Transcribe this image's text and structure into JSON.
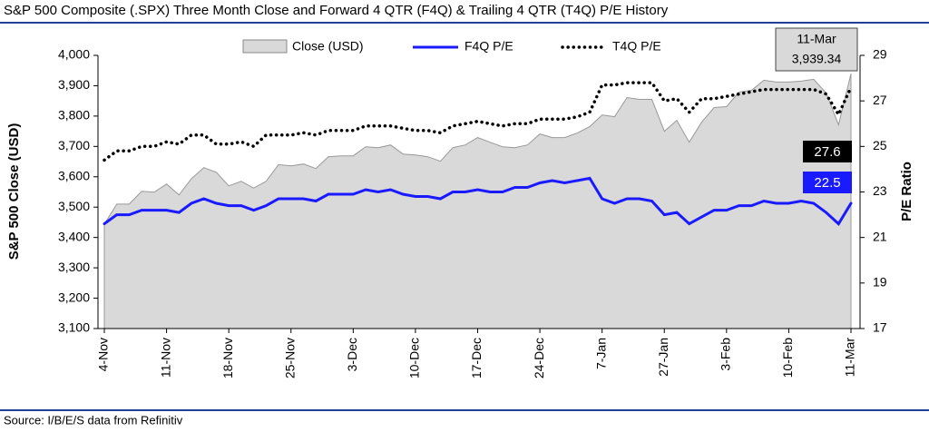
{
  "chart_data": {
    "type": "area_line",
    "title": "S&P 500 Composite (.SPX) Three Month Close and Forward 4 QTR (F4Q) & Trailing 4 QTR (T4Q) P/E History",
    "source": "Source: I/B/E/S data from Refinitiv",
    "y_label": "S&P 500 Close (USD)",
    "y2_label": "P/E Ratio",
    "categories": [
      "4-Nov",
      null,
      null,
      null,
      null,
      "11-Nov",
      null,
      null,
      null,
      null,
      "18-Nov",
      null,
      null,
      null,
      null,
      "25-Nov",
      null,
      null,
      null,
      null,
      "3-Dec",
      null,
      null,
      null,
      null,
      "10-Dec",
      null,
      null,
      null,
      null,
      "17-Dec",
      null,
      null,
      null,
      null,
      "24-Dec",
      null,
      null,
      null,
      null,
      "7-Jan",
      null,
      null,
      null,
      null,
      "27-Jan",
      null,
      null,
      null,
      null,
      "3-Feb",
      null,
      null,
      null,
      null,
      "10-Feb",
      null,
      null,
      null,
      null,
      "11-Mar"
    ],
    "series": [
      {
        "name": "Close (USD)",
        "color": "#d9d9d9",
        "axis": "y",
        "last_label": "3,939.34",
        "values": [
          3444,
          3510,
          3510,
          3552,
          3549,
          3576,
          3540,
          3594,
          3630,
          3615,
          3570,
          3585,
          3563,
          3585,
          3640,
          3636,
          3642,
          3627,
          3666,
          3669,
          3669,
          3699,
          3696,
          3705,
          3675,
          3672,
          3666,
          3651,
          3696,
          3705,
          3729,
          3714,
          3699,
          3696,
          3705,
          3741,
          3729,
          3729,
          3744,
          3765,
          3804,
          3798,
          3861,
          3855,
          3855,
          3750,
          3786,
          3714,
          3780,
          3828,
          3831,
          3879,
          3885,
          3918,
          3912,
          3912,
          3915,
          3921,
          3876,
          3771,
          3939.34
        ]
      },
      {
        "name": "F4Q P/E",
        "color": "#1a1aff",
        "axis": "y2",
        "values": [
          21.6,
          22.0,
          22.0,
          22.2,
          22.2,
          22.2,
          22.1,
          22.5,
          22.7,
          22.5,
          22.4,
          22.4,
          22.2,
          22.4,
          22.7,
          22.7,
          22.7,
          22.6,
          22.9,
          22.9,
          22.9,
          23.1,
          23.0,
          23.1,
          22.9,
          22.8,
          22.8,
          22.7,
          23.0,
          23.0,
          23.1,
          23.0,
          23.0,
          23.2,
          23.2,
          23.4,
          23.5,
          23.4,
          23.5,
          23.6,
          22.7,
          22.5,
          22.7,
          22.7,
          22.6,
          22.0,
          22.1,
          21.6,
          21.9,
          22.2,
          22.2,
          22.4,
          22.4,
          22.6,
          22.5,
          22.5,
          22.6,
          22.5,
          22.1,
          21.6,
          22.5
        ]
      },
      {
        "name": "T4Q P/E",
        "color": "#000000",
        "axis": "y2",
        "values": [
          24.4,
          24.8,
          24.8,
          25.0,
          25.0,
          25.2,
          25.1,
          25.5,
          25.5,
          25.1,
          25.1,
          25.2,
          25.0,
          25.5,
          25.5,
          25.5,
          25.6,
          25.5,
          25.7,
          25.7,
          25.7,
          25.9,
          25.9,
          25.9,
          25.8,
          25.7,
          25.7,
          25.6,
          25.9,
          26.0,
          26.1,
          26.0,
          25.9,
          26.0,
          26.0,
          26.2,
          26.2,
          26.2,
          26.3,
          26.5,
          27.7,
          27.7,
          27.8,
          27.8,
          27.8,
          27.0,
          27.1,
          26.5,
          27.1,
          27.1,
          27.2,
          27.3,
          27.4,
          27.5,
          27.5,
          27.5,
          27.5,
          27.5,
          27.3,
          26.4,
          27.6
        ]
      }
    ],
    "ylim": [
      3100,
      4000
    ],
    "yticks": [
      {
        "value": 3100,
        "label": "3,100"
      },
      {
        "value": 3200,
        "label": "3,200"
      },
      {
        "value": 3300,
        "label": "3,300"
      },
      {
        "value": 3400,
        "label": "3,400"
      },
      {
        "value": 3500,
        "label": "3,500"
      },
      {
        "value": 3600,
        "label": "3,600"
      },
      {
        "value": 3700,
        "label": "3,700"
      },
      {
        "value": 3800,
        "label": "3,800"
      },
      {
        "value": 3900,
        "label": "3,900"
      },
      {
        "value": 4000,
        "label": "4,000"
      }
    ],
    "y2lim": [
      17,
      29
    ],
    "y2ticks": [
      17,
      19,
      21,
      23,
      25,
      27,
      29
    ],
    "grid": false
  }
}
